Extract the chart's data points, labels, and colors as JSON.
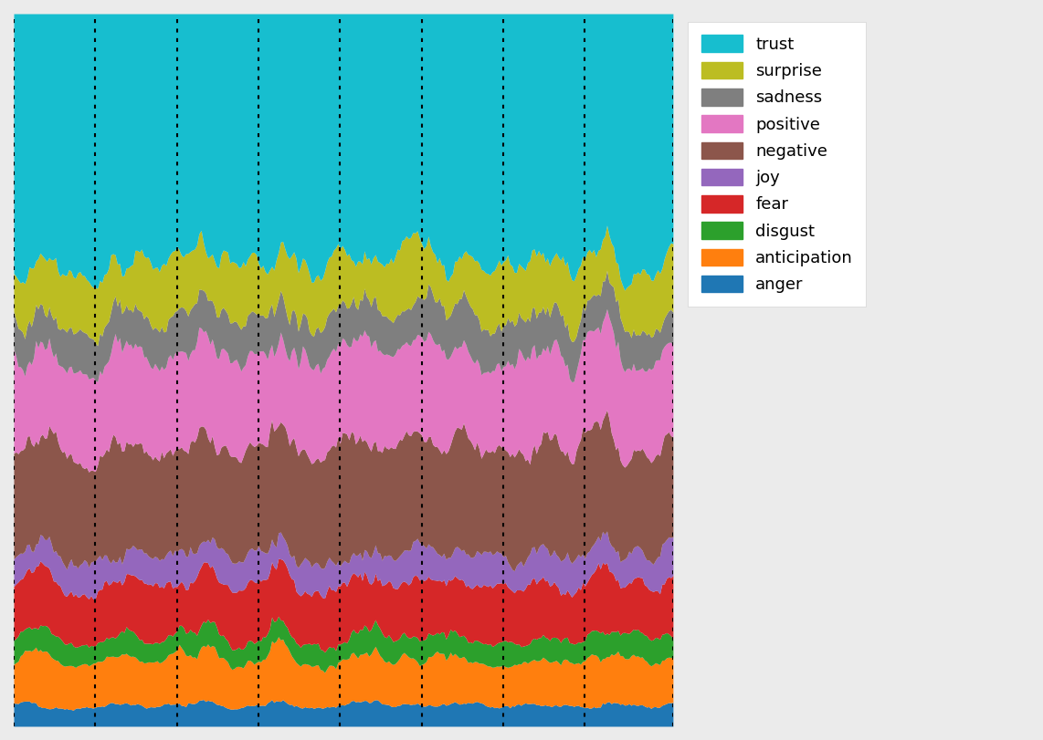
{
  "emotions": [
    "anger",
    "anticipation",
    "disgust",
    "fear",
    "joy",
    "negative",
    "positive",
    "sadness",
    "surprise",
    "trust"
  ],
  "colors": {
    "anger": "#1f77b4",
    "anticipation": "#ff7f0e",
    "disgust": "#2ca02c",
    "fear": "#d62728",
    "joy": "#9467bd",
    "negative": "#8c564b",
    "positive": "#e377c2",
    "sadness": "#7f7f7f",
    "surprise": "#bcbd22",
    "trust": "#17becf"
  },
  "legend_order": [
    "trust",
    "surprise",
    "sadness",
    "positive",
    "negative",
    "joy",
    "fear",
    "disgust",
    "anticipation",
    "anger"
  ],
  "legend_colors": {
    "trust": "#17becf",
    "surprise": "#bcbd22",
    "sadness": "#7f7f7f",
    "positive": "#e377c2",
    "negative": "#8c564b",
    "joy": "#9467bd",
    "fear": "#d62728",
    "disgust": "#2ca02c",
    "anticipation": "#ff7f0e",
    "anger": "#1f77b4"
  },
  "n_points": 300,
  "figsize": [
    11.42,
    8.11
  ],
  "background_color": "#ebebeb",
  "base_values": {
    "anger": 0.03,
    "anticipation": 0.065,
    "disgust": 0.03,
    "fear": 0.075,
    "joy": 0.04,
    "negative": 0.15,
    "positive": 0.13,
    "sadness": 0.055,
    "surprise": 0.075,
    "trust": 0.35
  },
  "noise_scale": {
    "anger": 0.008,
    "anticipation": 0.015,
    "disgust": 0.01,
    "fear": 0.02,
    "joy": 0.015,
    "negative": 0.035,
    "positive": 0.03,
    "sadness": 0.02,
    "surprise": 0.03,
    "trust": 0.06
  },
  "wave_scale": {
    "anger": 0.003,
    "anticipation": 0.008,
    "disgust": 0.005,
    "fear": 0.015,
    "joy": 0.01,
    "negative": 0.03,
    "positive": 0.025,
    "sadness": 0.01,
    "surprise": 0.025,
    "trust": 0.08
  }
}
